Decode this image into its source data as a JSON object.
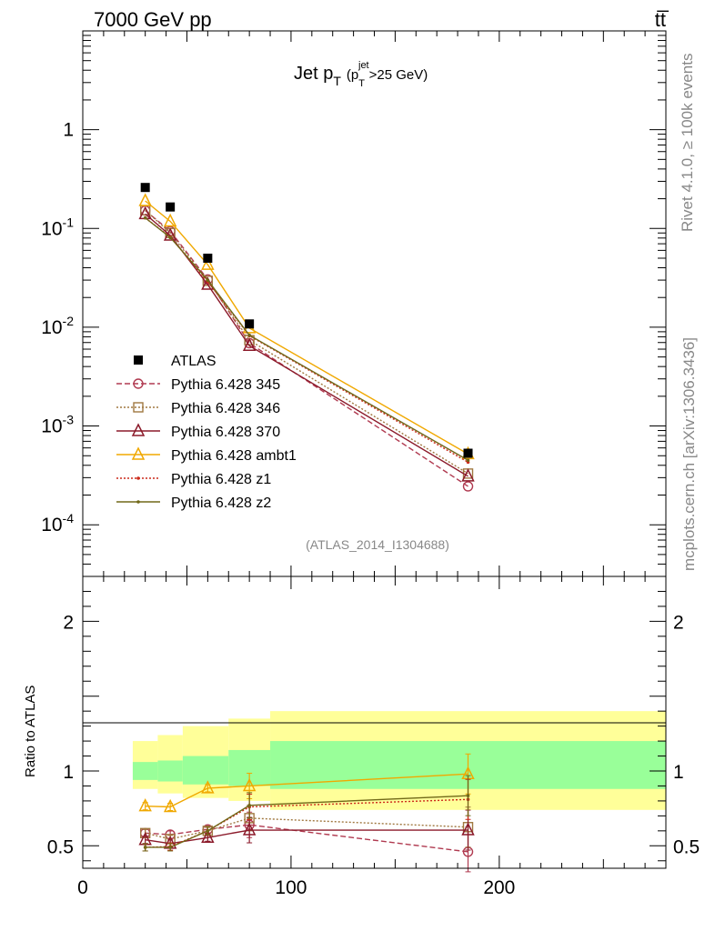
{
  "header": {
    "energy_label": "7000 GeV pp",
    "process_label": "tt̅"
  },
  "side": {
    "rivet_label": "Rivet 4.1.0, ≥ 100k events",
    "site_label": "mcplots.cern.ch [arXiv:1306.3436]"
  },
  "chart_data": [
    {
      "type": "line",
      "title_main": "Jet p",
      "title_sub": "T",
      "title_paren_open": "(p",
      "title_sup": "jet",
      "title_sub2": "T",
      "title_tail": ">25 GeV)",
      "watermark": "(ATLAS_2014_I1304688)",
      "yscale": "log",
      "ylim": [
        3e-05,
        10
      ],
      "xlim": [
        0,
        280
      ],
      "ytick_labels": [
        {
          "value": 1,
          "base": "1",
          "exp": ""
        },
        {
          "value": 0.1,
          "base": "10",
          "exp": "-1"
        },
        {
          "value": 0.01,
          "base": "10",
          "exp": "-2"
        },
        {
          "value": 0.001,
          "base": "10",
          "exp": "-3"
        },
        {
          "value": 0.0001,
          "base": "10",
          "exp": "-4"
        }
      ],
      "legend_position": "lower-left",
      "series": [
        {
          "name": "ATLAS",
          "color": "#000000",
          "marker": "square",
          "line": "none",
          "x": [
            30,
            42,
            60,
            80,
            185
          ],
          "y": [
            0.26,
            0.165,
            0.05,
            0.0108,
            0.00053
          ]
        },
        {
          "name": "Pythia 6.428 345",
          "color": "#b03a50",
          "marker": "circle",
          "line": "dashed",
          "x": [
            30,
            42,
            60,
            80,
            185
          ],
          "y": [
            0.152,
            0.094,
            0.0305,
            0.0069,
            0.000245
          ]
        },
        {
          "name": "Pythia 6.428 346",
          "color": "#a07840",
          "marker": "square-open",
          "line": "dotted",
          "x": [
            30,
            42,
            60,
            80,
            185
          ],
          "y": [
            0.153,
            0.09,
            0.0295,
            0.0074,
            0.00033
          ]
        },
        {
          "name": "Pythia 6.428 370",
          "color": "#8b1a2a",
          "marker": "triangle",
          "line": "solid",
          "x": [
            30,
            42,
            60,
            80,
            185
          ],
          "y": [
            0.14,
            0.085,
            0.027,
            0.0065,
            0.00031
          ]
        },
        {
          "name": "Pythia 6.428 ambt1",
          "color": "#f0a800",
          "marker": "triangle",
          "line": "solid",
          "x": [
            30,
            42,
            60,
            80,
            185
          ],
          "y": [
            0.19,
            0.118,
            0.043,
            0.0098,
            0.00052
          ]
        },
        {
          "name": "Pythia 6.428 z1",
          "color": "#cc2a1a",
          "marker": "dot",
          "line": "dotted",
          "x": [
            30,
            42,
            60,
            80,
            185
          ],
          "y": [
            0.128,
            0.082,
            0.029,
            0.0082,
            0.00043
          ]
        },
        {
          "name": "Pythia 6.428 z2",
          "color": "#706818",
          "marker": "dot",
          "line": "solid",
          "x": [
            30,
            42,
            60,
            80,
            185
          ],
          "y": [
            0.128,
            0.081,
            0.03,
            0.0083,
            0.00045
          ]
        }
      ]
    },
    {
      "type": "line",
      "ylabel": "Ratio to ATLAS",
      "xlim": [
        0,
        280
      ],
      "ylim": [
        0.35,
        2.3
      ],
      "xtick_labels": [
        {
          "value": 0,
          "label": "0"
        },
        {
          "value": 100,
          "label": "100"
        },
        {
          "value": 200,
          "label": "200"
        }
      ],
      "ytick_labels": [
        {
          "value": 0.5,
          "label": "0.5"
        },
        {
          "value": 1,
          "label": "1"
        },
        {
          "value": 2,
          "label": "2"
        }
      ],
      "bands": {
        "edges": [
          24,
          36,
          48,
          70,
          90,
          280
        ],
        "inner_lo": [
          0.94,
          0.93,
          0.91,
          0.9,
          0.88
        ],
        "inner_hi": [
          1.06,
          1.07,
          1.1,
          1.14,
          1.2
        ],
        "outer_lo": [
          0.88,
          0.85,
          0.82,
          0.8,
          0.74
        ],
        "outer_hi": [
          1.2,
          1.24,
          1.3,
          1.35,
          1.4
        ],
        "inner_color": "#99ff99",
        "outer_color": "#ffff99"
      },
      "series": [
        {
          "name": "Pythia 6.428 345",
          "color": "#b03a50",
          "marker": "circle",
          "line": "dashed",
          "x": [
            30,
            42,
            60,
            80,
            185
          ],
          "y": [
            0.585,
            0.575,
            0.61,
            0.64,
            0.46
          ]
        },
        {
          "name": "Pythia 6.428 346",
          "color": "#a07840",
          "marker": "square-open",
          "line": "dotted",
          "x": [
            30,
            42,
            60,
            80,
            185
          ],
          "y": [
            0.585,
            0.545,
            0.6,
            0.685,
            0.625
          ]
        },
        {
          "name": "Pythia 6.428 370",
          "color": "#8b1a2a",
          "marker": "triangle",
          "line": "solid",
          "x": [
            30,
            42,
            60,
            80,
            185
          ],
          "y": [
            0.54,
            0.515,
            0.555,
            0.605,
            0.605
          ]
        },
        {
          "name": "Pythia 6.428 ambt1",
          "color": "#f0a800",
          "marker": "triangle",
          "line": "solid",
          "x": [
            30,
            42,
            60,
            80,
            185
          ],
          "y": [
            0.765,
            0.76,
            0.885,
            0.9,
            0.98
          ]
        },
        {
          "name": "Pythia 6.428 z1",
          "color": "#cc2a1a",
          "marker": "dot",
          "line": "dotted",
          "x": [
            30,
            42,
            60,
            80,
            185
          ],
          "y": [
            0.49,
            0.495,
            0.6,
            0.76,
            0.81
          ]
        },
        {
          "name": "Pythia 6.428 z2",
          "color": "#706818",
          "marker": "dot",
          "line": "solid",
          "x": [
            30,
            42,
            60,
            80,
            185
          ],
          "y": [
            0.49,
            0.49,
            0.6,
            0.77,
            0.835
          ]
        }
      ]
    }
  ]
}
